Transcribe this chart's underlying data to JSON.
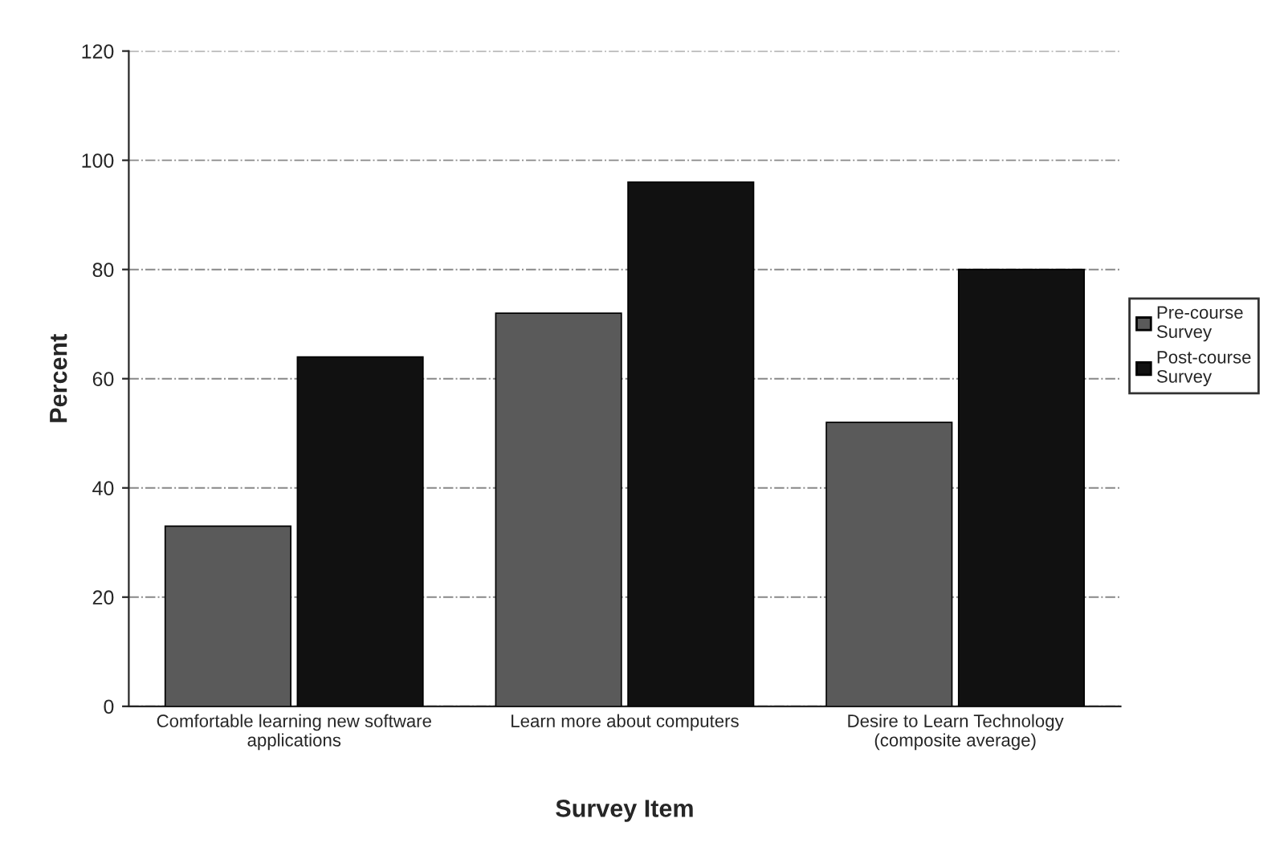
{
  "chart_data": {
    "type": "bar",
    "xlabel": "Survey Item",
    "ylabel": "Percent",
    "categories": [
      "Comfortable learning new software\napplications",
      "Learn more about computers",
      "Desire to Learn Technology\n(composite average)"
    ],
    "series": [
      {
        "name": "Pre-course\nSurvey",
        "color": "#5a5a5a",
        "values": [
          33,
          72,
          52
        ]
      },
      {
        "name": "Post-course\nSurvey",
        "color": "#111111",
        "values": [
          64,
          96,
          80
        ]
      }
    ],
    "ylim": [
      0,
      120
    ],
    "yticks": [
      0,
      20,
      40,
      60,
      80,
      100,
      120
    ],
    "grid": "y",
    "legend": "right"
  }
}
